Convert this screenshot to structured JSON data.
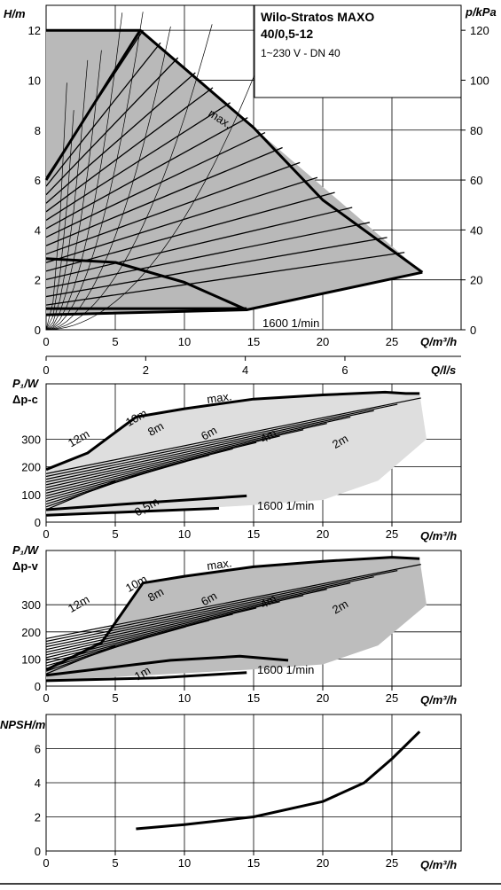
{
  "panel_title": {
    "line1": "Wilo-Stratos MAXO",
    "line2": "40/0,5-12",
    "line3": "1~230 V - DN 40"
  },
  "chart_data": [
    {
      "id": "hq",
      "type": "line",
      "title": "",
      "xlabel": "Q/m³/h",
      "ylabel": "H/m",
      "y2label": "p/kPa",
      "xlim": [
        0,
        30
      ],
      "ylim": [
        0,
        13
      ],
      "xticks": [
        0,
        5,
        10,
        15,
        20,
        25
      ],
      "yticks": [
        0,
        2,
        4,
        6,
        8,
        10,
        12
      ],
      "y2ticks": [
        0,
        20,
        40,
        60,
        80,
        100,
        120
      ],
      "grid": true,
      "annotations": [
        "max.",
        "1600 1/min"
      ],
      "region_vertices": [
        [
          0,
          12
        ],
        [
          6.8,
          12
        ],
        [
          27.2,
          2.3
        ],
        [
          14.5,
          0.8
        ],
        [
          0,
          0.6
        ]
      ],
      "series": [
        {
          "role": "max",
          "points": [
            [
              0,
              12
            ],
            [
              6.8,
              12
            ],
            [
              15,
              8.1
            ],
            [
              20,
              5.2
            ],
            [
              27.2,
              2.3
            ]
          ]
        },
        {
          "role": "dp-c-12m-lower",
          "points": [
            [
              0,
              6
            ],
            [
              6.8,
              12
            ]
          ]
        },
        {
          "role": "min",
          "points": [
            [
              0,
              0.6
            ],
            [
              14.5,
              0.8
            ],
            [
              27.2,
              2.3
            ]
          ]
        },
        {
          "role": "1600-rpm",
          "points": [
            [
              0,
              2.85
            ],
            [
              5,
              2.7
            ],
            [
              10,
              1.9
            ],
            [
              14.5,
              0.8
            ]
          ]
        },
        {
          "role": "dp-c",
          "points": [
            [
              0,
              0.6
            ],
            [
              27.2,
              2.3
            ]
          ]
        }
      ]
    },
    {
      "id": "qls",
      "type": "line",
      "xlabel": "Q/l/s",
      "xlim": [
        0,
        8.333
      ],
      "xticks": [
        0,
        2,
        4,
        6
      ]
    },
    {
      "id": "p1-dpc",
      "type": "line",
      "xlabel": "Q/m³/h",
      "ylabel_line1": "P₁/W",
      "ylabel_line2": "Δp-c",
      "xlim": [
        0,
        30
      ],
      "ylim": [
        0,
        500
      ],
      "xticks": [
        0,
        5,
        10,
        15,
        20,
        25
      ],
      "yticks": [
        0,
        100,
        200,
        300
      ],
      "grid": true,
      "annotations": [
        "max.",
        "1600 1/min"
      ],
      "curve_labels": [
        "12m",
        "10m",
        "8m",
        "6m",
        "4m",
        "2m",
        "0,5m"
      ],
      "series": [
        {
          "role": "max",
          "points": [
            [
              0,
              190
            ],
            [
              3,
              250
            ],
            [
              6.5,
              380
            ],
            [
              10,
              410
            ],
            [
              15,
              445
            ],
            [
              20,
              460
            ],
            [
              24.5,
              470
            ],
            [
              26,
              465
            ],
            [
              27,
              465
            ]
          ]
        },
        {
          "role": "1600-rpm",
          "points": [
            [
              0,
              45
            ],
            [
              7,
              70
            ],
            [
              14.5,
              95
            ]
          ]
        },
        {
          "role": "min",
          "points": [
            [
              0,
              25
            ],
            [
              12.5,
              50
            ]
          ]
        }
      ]
    },
    {
      "id": "p1-dpv",
      "type": "line",
      "xlabel": "Q/m³/h",
      "ylabel_line1": "P₁/W",
      "ylabel_line2": "Δp-v",
      "xlim": [
        0,
        30
      ],
      "ylim": [
        0,
        500
      ],
      "xticks": [
        0,
        5,
        10,
        15,
        20,
        25
      ],
      "yticks": [
        0,
        100,
        200,
        300
      ],
      "grid": true,
      "annotations": [
        "max.",
        "1600 1/min"
      ],
      "curve_labels": [
        "12m",
        "10m",
        "8m",
        "6m",
        "4m",
        "2m",
        "1m"
      ],
      "series": [
        {
          "role": "max",
          "points": [
            [
              0,
              60
            ],
            [
              4,
              160
            ],
            [
              7,
              380
            ],
            [
              10,
              405
            ],
            [
              15,
              440
            ],
            [
              20,
              460
            ],
            [
              25,
              475
            ],
            [
              27,
              470
            ]
          ]
        },
        {
          "role": "1600-rpm",
          "points": [
            [
              0,
              40
            ],
            [
              9,
              95
            ],
            [
              14,
              110
            ],
            [
              17.5,
              95
            ]
          ]
        },
        {
          "role": "min",
          "points": [
            [
              0,
              20
            ],
            [
              8,
              30
            ],
            [
              14.5,
              50
            ]
          ]
        }
      ]
    },
    {
      "id": "npsh",
      "type": "line",
      "xlabel": "Q/m³/h",
      "ylabel": "NPSH/m",
      "xlim": [
        0,
        30
      ],
      "ylim": [
        0,
        8
      ],
      "xticks": [
        0,
        5,
        10,
        15,
        20,
        25
      ],
      "yticks": [
        0,
        2,
        4,
        6
      ],
      "grid": true,
      "series": [
        {
          "role": "npsh",
          "points": [
            [
              6.5,
              1.3
            ],
            [
              10,
              1.55
            ],
            [
              15,
              2.0
            ],
            [
              20,
              2.9
            ],
            [
              23,
              4.0
            ],
            [
              25,
              5.4
            ],
            [
              27,
              7.0
            ]
          ]
        }
      ]
    }
  ]
}
